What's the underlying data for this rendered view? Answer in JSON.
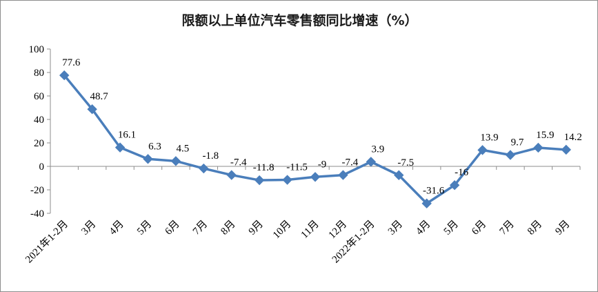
{
  "chart_data": {
    "type": "line",
    "title": "限额以上单位汽车零售额同比增速（%）",
    "xlabel": "",
    "ylabel": "",
    "ylim": [
      -40,
      100
    ],
    "yticks": [
      100,
      80,
      60,
      40,
      20,
      0,
      -20,
      -40
    ],
    "grid": false,
    "legend": "none",
    "line_color": "#4a7ebb",
    "categories": [
      "2021年1-2月",
      "3月",
      "4月",
      "5月",
      "6月",
      "7月",
      "8月",
      "9月",
      "10月",
      "11月",
      "12月",
      "2022年1-2月",
      "3月",
      "4月",
      "5月",
      "6月",
      "7月",
      "8月",
      "9月"
    ],
    "series": [
      {
        "values": [
          77.6,
          48.7,
          16.1,
          6.3,
          4.5,
          -1.8,
          -7.4,
          -11.8,
          -11.5,
          -9,
          -7.4,
          3.9,
          -7.5,
          -31.6,
          -16,
          13.9,
          9.7,
          15.9,
          14.2
        ],
        "labels": [
          "77.6",
          "48.7",
          "16.1",
          "6.3",
          "4.5",
          "-1.8",
          "-7.4",
          "-11.8",
          "-11.5",
          "-9",
          "-7.4",
          "3.9",
          "-7.5",
          "-31.6",
          "-16",
          "13.9",
          "9.7",
          "15.9",
          "14.2"
        ]
      }
    ]
  }
}
